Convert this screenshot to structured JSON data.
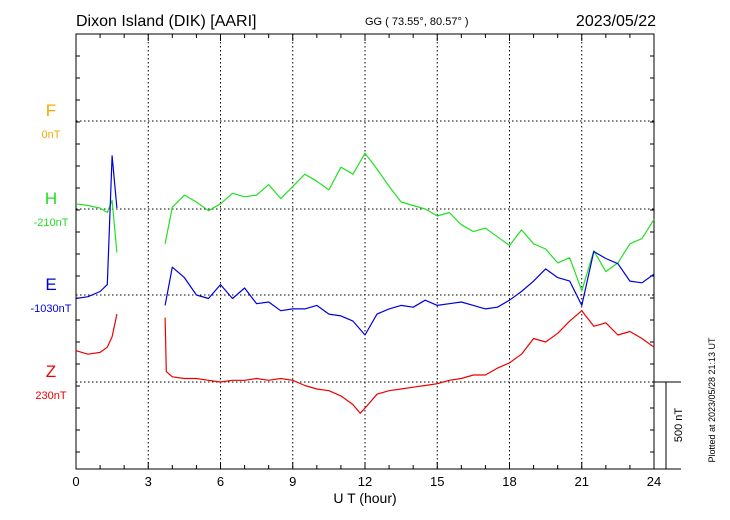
{
  "header": {
    "station": "Dixon Island (DIK)  [AARI]",
    "coords": "GG ( 73.55°,  80.57° )",
    "date": "2023/05/22"
  },
  "footer_note": "Plotted at 2023/05/28 21:13 UT",
  "chart_data": {
    "type": "line",
    "title": "Dixon Island (DIK)  [AARI]",
    "xlabel": "U T (hour)",
    "xlim": [
      0,
      24
    ],
    "x_ticks": [
      0,
      3,
      6,
      9,
      12,
      15,
      18,
      21,
      24
    ],
    "scale_bar_label": "500 nT",
    "scale_bar_nT": 500,
    "grid": true,
    "gap_hours": [
      1.7,
      3.7
    ],
    "series": [
      {
        "name": "F",
        "baseline": "0nT",
        "color": "#f5a800",
        "values": []
      },
      {
        "name": "H",
        "baseline": "-210nT",
        "color": "#22e022",
        "x": [
          0,
          0.5,
          1,
          1.3,
          1.5,
          1.7,
          3.7,
          4,
          4.5,
          5,
          5.5,
          6,
          6.5,
          7,
          7.5,
          8,
          8.5,
          9,
          9.5,
          10,
          10.5,
          11,
          11.5,
          12,
          12.5,
          13,
          13.5,
          14,
          14.5,
          15,
          15.5,
          16,
          16.5,
          17,
          17.5,
          18,
          18.5,
          19,
          19.5,
          20,
          20.5,
          21,
          21.5,
          22,
          22.5,
          23,
          23.5,
          24
        ],
        "values": [
          30,
          20,
          5,
          -20,
          50,
          -250,
          -200,
          10,
          80,
          40,
          -10,
          30,
          90,
          70,
          80,
          140,
          60,
          130,
          200,
          160,
          110,
          240,
          200,
          320,
          230,
          130,
          40,
          20,
          0,
          -40,
          -20,
          -90,
          -130,
          -110,
          -160,
          -210,
          -120,
          -200,
          -230,
          -310,
          -280,
          -470,
          -240,
          -360,
          -310,
          -200,
          -170,
          -60
        ]
      },
      {
        "name": "E",
        "baseline": "-1030nT",
        "color": "#0000dd",
        "x": [
          0,
          0.5,
          1,
          1.3,
          1.5,
          1.7,
          3.7,
          4,
          4.5,
          5,
          5.5,
          6,
          6.5,
          7,
          7.5,
          8,
          8.5,
          9,
          9.5,
          10,
          10.5,
          11,
          11.5,
          12,
          12.5,
          13,
          13.5,
          14,
          14.5,
          15,
          15.5,
          16,
          16.5,
          17,
          17.5,
          18,
          18.5,
          19,
          19.5,
          20,
          20.5,
          21,
          21.5,
          22,
          22.5,
          23,
          23.5,
          24
        ],
        "values": [
          -20,
          -10,
          20,
          60,
          800,
          500,
          -60,
          160,
          100,
          0,
          -20,
          60,
          -20,
          40,
          -50,
          -40,
          -90,
          -80,
          -80,
          -60,
          -110,
          -120,
          -150,
          -230,
          -110,
          -80,
          -60,
          -70,
          -30,
          -60,
          -50,
          -40,
          -60,
          -80,
          -70,
          -30,
          20,
          80,
          150,
          100,
          80,
          -60,
          250,
          210,
          180,
          80,
          70,
          120
        ]
      },
      {
        "name": "Z",
        "baseline": "230nT",
        "color": "#ee0000",
        "x": [
          0,
          0.5,
          1,
          1.3,
          1.5,
          1.7,
          3.7,
          3.75,
          4,
          4.5,
          5,
          5.5,
          6,
          6.5,
          7,
          7.5,
          8,
          8.5,
          9,
          9.5,
          10,
          10.5,
          11,
          11.5,
          11.8,
          12,
          12.5,
          13,
          13.5,
          14,
          14.5,
          15,
          15.5,
          16,
          16.5,
          17,
          17.5,
          18,
          18.5,
          19,
          19.5,
          20,
          20.5,
          21,
          21.5,
          22,
          22.5,
          23,
          23.5,
          24
        ],
        "values": [
          180,
          160,
          170,
          200,
          260,
          390,
          370,
          60,
          30,
          20,
          20,
          10,
          0,
          10,
          10,
          20,
          10,
          20,
          10,
          -20,
          -40,
          -50,
          -80,
          -130,
          -180,
          -150,
          -70,
          -50,
          -40,
          -30,
          -20,
          -10,
          10,
          20,
          40,
          40,
          80,
          110,
          160,
          250,
          230,
          280,
          350,
          410,
          320,
          340,
          270,
          290,
          250,
          200
        ]
      }
    ]
  }
}
